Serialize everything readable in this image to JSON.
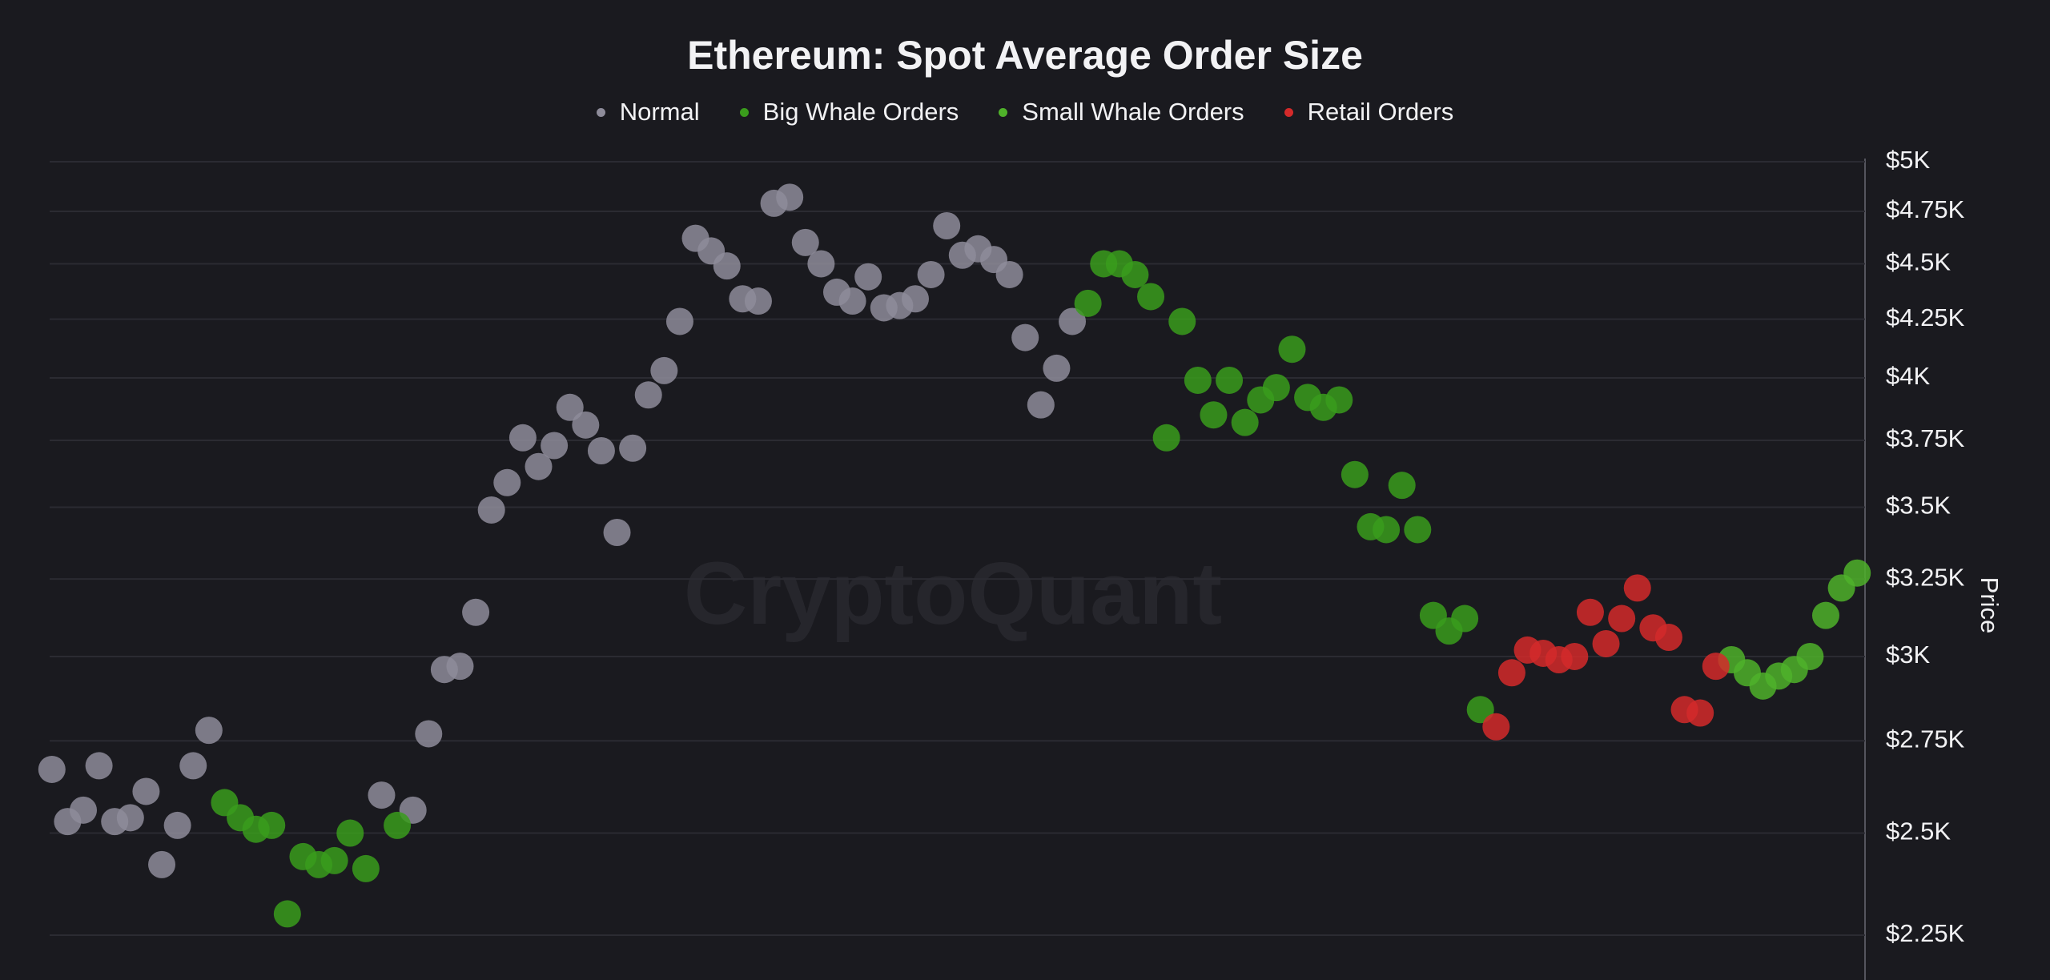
{
  "chart_data": {
    "type": "scatter",
    "title": "Ethereum: Spot Average Order Size",
    "watermark": "CryptoQuant",
    "y_label": "Price",
    "yscale": "log",
    "grid": true,
    "ylim": [
      2150,
      5000
    ],
    "yticks": [
      {
        "value": 2250,
        "label": "$2.25K"
      },
      {
        "value": 2500,
        "label": "$2.5K"
      },
      {
        "value": 2750,
        "label": "$2.75K"
      },
      {
        "value": 3000,
        "label": "$3K"
      },
      {
        "value": 3250,
        "label": "$3.25K"
      },
      {
        "value": 3500,
        "label": "$3.5K"
      },
      {
        "value": 3750,
        "label": "$3.75K"
      },
      {
        "value": 4000,
        "label": "$4K"
      },
      {
        "value": 4250,
        "label": "$4.25K"
      },
      {
        "value": 4500,
        "label": "$4.5K"
      },
      {
        "value": 4750,
        "label": "$4.75K"
      },
      {
        "value": 5000,
        "label": "$5K"
      }
    ],
    "categories": [
      null,
      null,
      null,
      null,
      null,
      null,
      null,
      null,
      null,
      null,
      null,
      null,
      null,
      null,
      null,
      null,
      null,
      null,
      null,
      null,
      null,
      null,
      null,
      null,
      null,
      null,
      null,
      null,
      null,
      null,
      null,
      null,
      null,
      null,
      null,
      null,
      null,
      null,
      null,
      null,
      null,
      null,
      null,
      null,
      null,
      null,
      null,
      null,
      null,
      null,
      null,
      null,
      null,
      null,
      null,
      null,
      null,
      null,
      null,
      null,
      null,
      null,
      null,
      null,
      null,
      null,
      null,
      null,
      null,
      null,
      null,
      null,
      null,
      null,
      null,
      null,
      null,
      null,
      null,
      null,
      null,
      null,
      null,
      null,
      null,
      null,
      null,
      null,
      null,
      null,
      null,
      null,
      null,
      null,
      null,
      null,
      null,
      null,
      null,
      null,
      null,
      null,
      null,
      null,
      null,
      null,
      null,
      null,
      null,
      null,
      null,
      null,
      null,
      null,
      null,
      null
    ],
    "series": [
      {
        "name": "Normal",
        "color": "#8e8c9a",
        "values": [
          2670,
          2530,
          2560,
          2680,
          2530,
          2540,
          2610,
          2420,
          2520,
          2680,
          2780,
          null,
          null,
          null,
          null,
          null,
          null,
          null,
          null,
          null,
          null,
          2600,
          null,
          2560,
          2770,
          2960,
          2970,
          3140,
          3490,
          3590,
          3760,
          3650,
          3730,
          3880,
          3810,
          3710,
          3410,
          3720,
          3930,
          4030,
          4240,
          4620,
          4560,
          4490,
          4340,
          4330,
          4790,
          4820,
          4600,
          4500,
          4370,
          4330,
          4440,
          4300,
          4310,
          4340,
          4450,
          4680,
          4540,
          4570,
          4520,
          4450,
          4170,
          3890,
          4040,
          4240,
          null,
          null,
          null,
          null,
          null,
          null,
          null,
          null,
          null,
          null,
          null,
          null,
          null,
          null,
          null,
          null,
          null,
          null,
          null,
          null,
          null,
          null,
          null,
          null,
          null,
          null,
          null,
          null,
          null,
          null,
          null,
          null,
          null,
          null,
          null,
          null,
          null,
          null,
          null,
          null,
          null,
          null,
          null,
          null,
          null,
          null,
          null,
          null,
          null,
          null
        ]
      },
      {
        "name": "Big Whale Orders",
        "color": "#3a9c1c",
        "values": [
          null,
          null,
          null,
          null,
          null,
          null,
          null,
          null,
          null,
          null,
          null,
          2580,
          2540,
          2510,
          2520,
          2300,
          2440,
          2420,
          2430,
          2500,
          2410,
          null,
          2520,
          null,
          null,
          null,
          null,
          null,
          null,
          null,
          null,
          null,
          null,
          null,
          null,
          null,
          null,
          null,
          null,
          null,
          null,
          null,
          null,
          null,
          null,
          null,
          null,
          null,
          null,
          null,
          null,
          null,
          null,
          null,
          null,
          null,
          null,
          null,
          null,
          null,
          null,
          null,
          null,
          null,
          null,
          null,
          4320,
          4500,
          4500,
          4450,
          4350,
          3760,
          4240,
          3990,
          3850,
          3990,
          3820,
          3910,
          3960,
          4120,
          3920,
          3880,
          3910,
          3620,
          3430,
          3420,
          3580,
          3420,
          3130,
          3080,
          3120,
          2840,
          null,
          null,
          null,
          null,
          null,
          null,
          null,
          null,
          null,
          null,
          null,
          null,
          null,
          null,
          null,
          null,
          null,
          null,
          null,
          null,
          null,
          null,
          null,
          null
        ]
      },
      {
        "name": "Small Whale Orders",
        "color": "#4fb22a",
        "values": [
          null,
          null,
          null,
          null,
          null,
          null,
          null,
          null,
          null,
          null,
          null,
          null,
          null,
          null,
          null,
          null,
          null,
          null,
          null,
          null,
          null,
          null,
          null,
          null,
          null,
          null,
          null,
          null,
          null,
          null,
          null,
          null,
          null,
          null,
          null,
          null,
          null,
          null,
          null,
          null,
          null,
          null,
          null,
          null,
          null,
          null,
          null,
          null,
          null,
          null,
          null,
          null,
          null,
          null,
          null,
          null,
          null,
          null,
          null,
          null,
          null,
          null,
          null,
          null,
          null,
          null,
          null,
          null,
          null,
          null,
          null,
          null,
          null,
          null,
          null,
          null,
          null,
          null,
          null,
          null,
          null,
          null,
          null,
          null,
          null,
          null,
          null,
          null,
          null,
          null,
          null,
          null,
          null,
          null,
          null,
          null,
          null,
          null,
          null,
          null,
          null,
          null,
          null,
          null,
          null,
          null,
          null,
          2990,
          2950,
          2910,
          2940,
          2960,
          3000,
          3130,
          3220,
          3270
        ]
      },
      {
        "name": "Retail Orders",
        "color": "#d42a2a",
        "values": [
          null,
          null,
          null,
          null,
          null,
          null,
          null,
          null,
          null,
          null,
          null,
          null,
          null,
          null,
          null,
          null,
          null,
          null,
          null,
          null,
          null,
          null,
          null,
          null,
          null,
          null,
          null,
          null,
          null,
          null,
          null,
          null,
          null,
          null,
          null,
          null,
          null,
          null,
          null,
          null,
          null,
          null,
          null,
          null,
          null,
          null,
          null,
          null,
          null,
          null,
          null,
          null,
          null,
          null,
          null,
          null,
          null,
          null,
          null,
          null,
          null,
          null,
          null,
          null,
          null,
          null,
          null,
          null,
          null,
          null,
          null,
          null,
          null,
          null,
          null,
          null,
          null,
          null,
          null,
          null,
          null,
          null,
          null,
          null,
          null,
          null,
          null,
          null,
          null,
          null,
          null,
          null,
          2790,
          2950,
          3020,
          3010,
          2990,
          3000,
          3140,
          3040,
          3120,
          3220,
          3090,
          3060,
          2840,
          2830,
          2970,
          null,
          null,
          null,
          null,
          null,
          null,
          null,
          null,
          null
        ]
      }
    ]
  }
}
